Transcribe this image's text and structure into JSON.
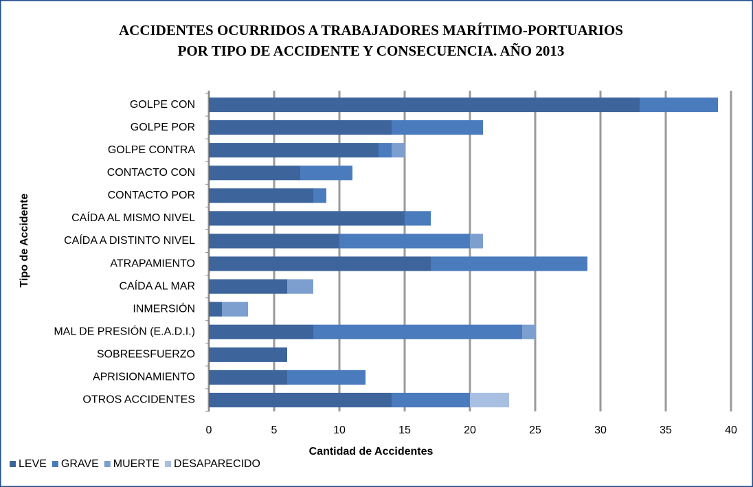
{
  "chart_data": {
    "type": "stacked_barh",
    "title": [
      "ACCIDENTES OCURRIDOS A TRABAJADORES MARÍTIMO-PORTUARIOS",
      "POR TIPO DE ACCIDENTE Y CONSECUENCIA. AÑO 2013"
    ],
    "xlabel": "Cantidad de Accidentes",
    "ylabel": "Tipo de Accidente",
    "categories": [
      "GOLPE CON",
      "GOLPE POR",
      "GOLPE CONTRA",
      "CONTACTO CON",
      "CONTACTO POR",
      "CAÍDA AL MISMO NIVEL",
      "CAÍDA A DISTINTO NIVEL",
      "ATRAPAMIENTO",
      "CAÍDA AL MAR",
      "INMERSIÓN",
      "MAL DE PRESIÓN (E.A.D.I.)",
      "SOBREESFUERZO",
      "APRISIONAMIENTO",
      "OTROS ACCIDENTES"
    ],
    "series": [
      {
        "name": "LEVE",
        "color": "#3d659c",
        "values": [
          33,
          14,
          13,
          7,
          8,
          15,
          10,
          17,
          6,
          1,
          8,
          6,
          6,
          14
        ]
      },
      {
        "name": "GRAVE",
        "color": "#4a7bbd",
        "values": [
          6,
          7,
          1,
          4,
          1,
          2,
          10,
          12,
          0,
          0,
          16,
          0,
          6,
          6
        ]
      },
      {
        "name": "MUERTE",
        "color": "#7c9fd0",
        "values": [
          0,
          0,
          1,
          0,
          0,
          0,
          1,
          0,
          2,
          2,
          1,
          0,
          0,
          0
        ]
      },
      {
        "name": "DESAPARECIDO",
        "color": "#a8bfe2",
        "values": [
          0,
          0,
          0,
          0,
          0,
          0,
          0,
          0,
          0,
          0,
          0,
          0,
          0,
          3
        ]
      }
    ],
    "xlim": [
      0,
      40
    ],
    "xticks": [
      0,
      5,
      10,
      15,
      20,
      25,
      30,
      35,
      40
    ],
    "grid": true,
    "legend": "bottom-left"
  }
}
